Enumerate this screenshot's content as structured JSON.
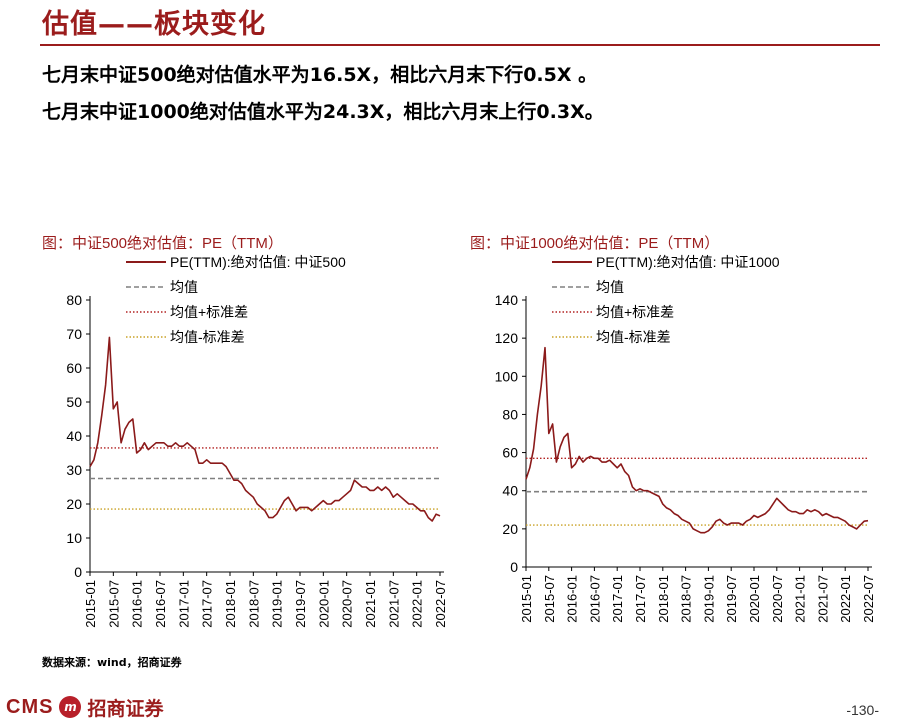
{
  "header": {
    "title": "估值——板块变化"
  },
  "summary": {
    "line1": "七月末中证500绝对估值水平为16.5X，相比六月末下行0.5X 。",
    "line2": "七月末中证1000绝对估值水平为24.3X，相比六月末上行0.3X。"
  },
  "source": "数据来源：wind，招商证券",
  "footer": {
    "logo_text": "CMS",
    "logo_mark": "m",
    "logo_cn": "招商证券",
    "page": "-130-"
  },
  "colors": {
    "accent": "#9b1c1c",
    "series": "#8b1a1a",
    "mean": "#808080",
    "plus": "#b22222",
    "minus": "#c9a227"
  },
  "chart_data": [
    {
      "type": "line",
      "title": "图：中证500绝对估值：PE（TTM）",
      "legend": [
        "PE(TTM):绝对估值: 中证500",
        "均值",
        "均值+标准差",
        "均值-标准差"
      ],
      "legend_position": "top",
      "ylim": [
        0,
        80
      ],
      "yticks": [
        "0",
        "10",
        "20",
        "30",
        "40",
        "50",
        "60",
        "70",
        "80"
      ],
      "xticks": [
        "2015-01",
        "2015-07",
        "2016-01",
        "2016-07",
        "2017-01",
        "2017-07",
        "2018-01",
        "2018-07",
        "2019-01",
        "2019-07",
        "2020-01",
        "2020-07",
        "2021-01",
        "2021-07",
        "2022-01",
        "2022-07"
      ],
      "mean": 27.5,
      "mean_plus_std": 36.5,
      "mean_minus_std": 18.5,
      "x": [
        "2015-01",
        "2015-02",
        "2015-03",
        "2015-04",
        "2015-05",
        "2015-06",
        "2015-07",
        "2015-08",
        "2015-09",
        "2015-10",
        "2015-11",
        "2015-12",
        "2016-01",
        "2016-02",
        "2016-03",
        "2016-04",
        "2016-05",
        "2016-06",
        "2016-07",
        "2016-08",
        "2016-09",
        "2016-10",
        "2016-11",
        "2016-12",
        "2017-01",
        "2017-02",
        "2017-03",
        "2017-04",
        "2017-05",
        "2017-06",
        "2017-07",
        "2017-08",
        "2017-09",
        "2017-10",
        "2017-11",
        "2017-12",
        "2018-01",
        "2018-02",
        "2018-03",
        "2018-04",
        "2018-05",
        "2018-06",
        "2018-07",
        "2018-08",
        "2018-09",
        "2018-10",
        "2018-11",
        "2018-12",
        "2019-01",
        "2019-02",
        "2019-03",
        "2019-04",
        "2019-05",
        "2019-06",
        "2019-07",
        "2019-08",
        "2019-09",
        "2019-10",
        "2019-11",
        "2019-12",
        "2020-01",
        "2020-02",
        "2020-03",
        "2020-04",
        "2020-05",
        "2020-06",
        "2020-07",
        "2020-08",
        "2020-09",
        "2020-10",
        "2020-11",
        "2020-12",
        "2021-01",
        "2021-02",
        "2021-03",
        "2021-04",
        "2021-05",
        "2021-06",
        "2021-07",
        "2021-08",
        "2021-09",
        "2021-10",
        "2021-11",
        "2021-12",
        "2022-01",
        "2022-02",
        "2022-03",
        "2022-04",
        "2022-05",
        "2022-06",
        "2022-07"
      ],
      "values": [
        31,
        33,
        38,
        46,
        55,
        69,
        48,
        50,
        38,
        42,
        44,
        45,
        35,
        36,
        38,
        36,
        37,
        38,
        38,
        38,
        37,
        37,
        38,
        37,
        37,
        38,
        37,
        36,
        32,
        32,
        33,
        32,
        32,
        32,
        32,
        31,
        29,
        27,
        27,
        26,
        24,
        23,
        22,
        20,
        19,
        18,
        16,
        16,
        17,
        19,
        21,
        22,
        20,
        18,
        19,
        19,
        19,
        18,
        19,
        20,
        21,
        20,
        20,
        21,
        21,
        22,
        23,
        24,
        27,
        26,
        25,
        25,
        24,
        24,
        25,
        24,
        25,
        24,
        22,
        23,
        22,
        21,
        20,
        20,
        19,
        18,
        18,
        16,
        15,
        17,
        16.5
      ]
    },
    {
      "type": "line",
      "title": "图：中证1000绝对估值：PE（TTM）",
      "legend": [
        "PE(TTM):绝对估值: 中证1000",
        "均值",
        "均值+标准差",
        "均值-标准差"
      ],
      "legend_position": "top",
      "ylim": [
        0,
        140
      ],
      "yticks": [
        "0",
        "20",
        "40",
        "60",
        "80",
        "100",
        "120",
        "140"
      ],
      "xticks": [
        "2015-01",
        "2015-07",
        "2016-01",
        "2016-07",
        "2017-01",
        "2017-07",
        "2018-01",
        "2018-07",
        "2019-01",
        "2019-07",
        "2020-01",
        "2020-07",
        "2021-01",
        "2021-07",
        "2022-01",
        "2022-07"
      ],
      "mean": 39.5,
      "mean_plus_std": 57,
      "mean_minus_std": 22,
      "x": [
        "2015-01",
        "2015-02",
        "2015-03",
        "2015-04",
        "2015-05",
        "2015-06",
        "2015-07",
        "2015-08",
        "2015-09",
        "2015-10",
        "2015-11",
        "2015-12",
        "2016-01",
        "2016-02",
        "2016-03",
        "2016-04",
        "2016-05",
        "2016-06",
        "2016-07",
        "2016-08",
        "2016-09",
        "2016-10",
        "2016-11",
        "2016-12",
        "2017-01",
        "2017-02",
        "2017-03",
        "2017-04",
        "2017-05",
        "2017-06",
        "2017-07",
        "2017-08",
        "2017-09",
        "2017-10",
        "2017-11",
        "2017-12",
        "2018-01",
        "2018-02",
        "2018-03",
        "2018-04",
        "2018-05",
        "2018-06",
        "2018-07",
        "2018-08",
        "2018-09",
        "2018-10",
        "2018-11",
        "2018-12",
        "2019-01",
        "2019-02",
        "2019-03",
        "2019-04",
        "2019-05",
        "2019-06",
        "2019-07",
        "2019-08",
        "2019-09",
        "2019-10",
        "2019-11",
        "2019-12",
        "2020-01",
        "2020-02",
        "2020-03",
        "2020-04",
        "2020-05",
        "2020-06",
        "2020-07",
        "2020-08",
        "2020-09",
        "2020-10",
        "2020-11",
        "2020-12",
        "2021-01",
        "2021-02",
        "2021-03",
        "2021-04",
        "2021-05",
        "2021-06",
        "2021-07",
        "2021-08",
        "2021-09",
        "2021-10",
        "2021-11",
        "2021-12",
        "2022-01",
        "2022-02",
        "2022-03",
        "2022-04",
        "2022-05",
        "2022-06",
        "2022-07"
      ],
      "values": [
        46,
        52,
        62,
        80,
        95,
        115,
        70,
        75,
        55,
        63,
        68,
        70,
        52,
        54,
        58,
        55,
        57,
        58,
        57,
        57,
        55,
        55,
        56,
        54,
        52,
        54,
        50,
        48,
        42,
        40,
        41,
        40,
        40,
        39,
        38,
        37,
        33,
        31,
        30,
        28,
        27,
        25,
        24,
        23,
        20,
        19,
        18,
        18,
        19,
        21,
        24,
        25,
        23,
        22,
        23,
        23,
        23,
        22,
        24,
        25,
        27,
        26,
        27,
        28,
        30,
        33,
        36,
        34,
        32,
        30,
        29,
        29,
        28,
        28,
        30,
        29,
        30,
        29,
        27,
        28,
        27,
        26,
        26,
        25,
        24,
        22,
        21,
        20,
        22,
        24,
        24.3
      ]
    }
  ]
}
